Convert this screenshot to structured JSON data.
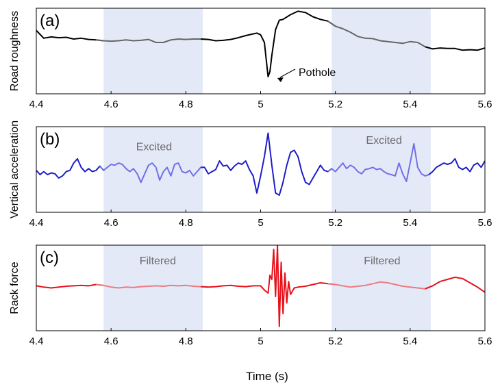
{
  "chart_data": [
    {
      "panel_label": "(a)",
      "type": "line",
      "ylabel": "Road roughness",
      "xlim": [
        4.4,
        5.6
      ],
      "ylim": [
        -1,
        1
      ],
      "ticks": [
        "4.4",
        "4.6",
        "4.8",
        "5",
        "5.2",
        "5.4",
        "5.6"
      ],
      "line_color": "#000000",
      "highlight_color": "#666666",
      "highlight_ranges": [
        [
          4.58,
          4.845
        ],
        [
          5.19,
          5.455
        ]
      ],
      "series": [
        {
          "x": [
            4.4,
            4.42,
            4.44,
            4.46,
            4.48,
            4.5,
            4.52,
            4.54,
            4.56,
            4.58,
            4.6,
            4.62,
            4.64,
            4.66,
            4.68,
            4.7,
            4.72,
            4.74,
            4.76,
            4.78,
            4.8,
            4.82,
            4.84,
            4.86,
            4.88,
            4.9,
            4.92,
            4.94,
            4.96,
            4.98,
            4.99,
            5.0,
            5.01,
            5.02,
            5.025,
            5.03,
            5.04,
            5.05,
            5.06,
            5.08,
            5.1,
            5.12,
            5.14,
            5.16,
            5.18,
            5.2,
            5.22,
            5.24,
            5.26,
            5.28,
            5.3,
            5.32,
            5.34,
            5.36,
            5.38,
            5.4,
            5.42,
            5.44,
            5.46,
            5.48,
            5.5,
            5.52,
            5.54,
            5.56,
            5.58,
            5.6
          ],
          "y": [
            0.48,
            0.3,
            0.33,
            0.31,
            0.32,
            0.28,
            0.3,
            0.27,
            0.26,
            0.24,
            0.23,
            0.24,
            0.26,
            0.24,
            0.25,
            0.27,
            0.2,
            0.2,
            0.26,
            0.28,
            0.27,
            0.28,
            0.28,
            0.27,
            0.24,
            0.25,
            0.27,
            0.31,
            0.36,
            0.4,
            0.42,
            0.38,
            0.2,
            -0.6,
            -0.48,
            -0.1,
            0.5,
            0.72,
            0.74,
            0.85,
            0.93,
            0.9,
            0.8,
            0.74,
            0.7,
            0.58,
            0.52,
            0.44,
            0.34,
            0.3,
            0.29,
            0.24,
            0.22,
            0.2,
            0.18,
            0.22,
            0.2,
            0.1,
            0.05,
            0.07,
            0.06,
            0.06,
            0.02,
            0.03,
            0.02,
            0.07
          ]
        }
      ],
      "annotations": [
        {
          "text": "Pothole",
          "x": 5.03,
          "y": -0.6
        }
      ]
    },
    {
      "panel_label": "(b)",
      "type": "line",
      "ylabel": "Vertical acceleration",
      "xlim": [
        4.4,
        5.6
      ],
      "ylim": [
        -1,
        1
      ],
      "ticks": [
        "4.4",
        "4.6",
        "4.8",
        "5",
        "5.2",
        "5.4",
        "5.6"
      ],
      "line_color": "#1c1cc8",
      "highlight_color": "#7070e6",
      "highlight_ranges": [
        [
          4.58,
          4.845
        ],
        [
          5.19,
          5.455
        ]
      ],
      "series": [
        {
          "x": [
            4.4,
            4.41,
            4.42,
            4.43,
            4.44,
            4.45,
            4.46,
            4.47,
            4.48,
            4.49,
            4.5,
            4.51,
            4.52,
            4.53,
            4.54,
            4.55,
            4.56,
            4.57,
            4.58,
            4.59,
            4.6,
            4.61,
            4.62,
            4.63,
            4.64,
            4.65,
            4.66,
            4.67,
            4.68,
            4.69,
            4.7,
            4.71,
            4.72,
            4.73,
            4.74,
            4.75,
            4.76,
            4.77,
            4.78,
            4.79,
            4.8,
            4.81,
            4.82,
            4.83,
            4.84,
            4.85,
            4.86,
            4.87,
            4.88,
            4.89,
            4.9,
            4.91,
            4.92,
            4.93,
            4.94,
            4.95,
            4.96,
            4.97,
            4.98,
            4.99,
            5.0,
            5.01,
            5.02,
            5.03,
            5.04,
            5.05,
            5.06,
            5.07,
            5.08,
            5.09,
            5.1,
            5.11,
            5.12,
            5.13,
            5.14,
            5.15,
            5.16,
            5.17,
            5.18,
            5.19,
            5.2,
            5.21,
            5.22,
            5.23,
            5.24,
            5.25,
            5.26,
            5.27,
            5.28,
            5.29,
            5.3,
            5.31,
            5.32,
            5.33,
            5.34,
            5.35,
            5.36,
            5.37,
            5.38,
            5.39,
            5.4,
            5.41,
            5.42,
            5.43,
            5.44,
            5.45,
            5.46,
            5.47,
            5.48,
            5.49,
            5.5,
            5.51,
            5.52,
            5.53,
            5.54,
            5.55,
            5.56,
            5.57,
            5.58,
            5.59,
            5.6
          ],
          "y": [
            -0.02,
            -0.12,
            -0.05,
            -0.12,
            -0.08,
            -0.1,
            -0.2,
            -0.15,
            -0.05,
            -0.02,
            0.15,
            0.25,
            0.05,
            -0.05,
            0.02,
            -0.05,
            -0.02,
            0.08,
            -0.02,
            0.05,
            0.12,
            0.1,
            0.15,
            0.12,
            0.02,
            -0.05,
            0.02,
            -0.1,
            -0.3,
            -0.1,
            0.1,
            0.15,
            0.05,
            -0.25,
            -0.05,
            0.05,
            -0.15,
            0.12,
            0.15,
            -0.05,
            -0.08,
            -0.02,
            -0.15,
            -0.05,
            0.05,
            0.05,
            -0.1,
            -0.05,
            0.0,
            0.2,
            0.08,
            0.1,
            -0.02,
            0.08,
            0.15,
            0.12,
            0.2,
            0.0,
            -0.15,
            -0.55,
            -0.15,
            0.3,
            0.85,
            0.1,
            -0.55,
            -0.6,
            -0.3,
            0.1,
            0.4,
            0.45,
            0.3,
            -0.05,
            -0.3,
            -0.35,
            -0.2,
            -0.05,
            0.1,
            -0.02,
            -0.05,
            0.02,
            -0.05,
            0.05,
            0.15,
            0.02,
            0.1,
            0.05,
            -0.05,
            -0.1,
            0.0,
            0.02,
            0.05,
            0.0,
            0.02,
            -0.05,
            -0.1,
            -0.12,
            -0.15,
            0.15,
            -0.1,
            -0.28,
            0.15,
            0.6,
            0.05,
            -0.1,
            -0.15,
            -0.12,
            -0.05,
            0.05,
            0.1,
            0.15,
            0.12,
            0.15,
            0.25,
            0.05,
            0.0,
            0.05,
            -0.05,
            0.1,
            0.15,
            0.05,
            0.2
          ]
        }
      ],
      "annotations": [
        {
          "text": "Excited",
          "x": 4.715,
          "y": 0.45
        },
        {
          "text": "Excited",
          "x": 5.33,
          "y": 0.6
        }
      ]
    },
    {
      "panel_label": "(c)",
      "type": "line",
      "ylabel": "Rack force",
      "xlim": [
        4.4,
        5.6
      ],
      "ylim": [
        -1,
        1
      ],
      "ticks": [
        "4.4",
        "4.6",
        "4.8",
        "5",
        "5.2",
        "5.4",
        "5.6"
      ],
      "line_color": "#e8101a",
      "highlight_color": "#ee7a80",
      "highlight_ranges": [
        [
          4.58,
          4.845
        ],
        [
          5.19,
          5.455
        ]
      ],
      "series": [
        {
          "x": [
            4.4,
            4.42,
            4.44,
            4.46,
            4.48,
            4.5,
            4.52,
            4.54,
            4.56,
            4.58,
            4.6,
            4.62,
            4.64,
            4.66,
            4.68,
            4.7,
            4.72,
            4.74,
            4.76,
            4.78,
            4.8,
            4.82,
            4.84,
            4.86,
            4.88,
            4.9,
            4.92,
            4.94,
            4.96,
            4.98,
            5.0,
            5.01,
            5.02,
            5.025,
            5.03,
            5.035,
            5.04,
            5.045,
            5.05,
            5.055,
            5.06,
            5.065,
            5.07,
            5.075,
            5.08,
            5.09,
            5.1,
            5.12,
            5.14,
            5.16,
            5.18,
            5.2,
            5.22,
            5.24,
            5.26,
            5.28,
            5.3,
            5.32,
            5.34,
            5.36,
            5.38,
            5.4,
            5.42,
            5.44,
            5.46,
            5.48,
            5.5,
            5.52,
            5.54,
            5.56,
            5.58,
            5.6
          ],
          "y": [
            0.05,
            0.02,
            0.0,
            0.02,
            0.04,
            0.05,
            0.06,
            0.05,
            0.08,
            0.06,
            0.02,
            0.0,
            0.02,
            0.01,
            0.03,
            0.04,
            0.05,
            0.04,
            0.06,
            0.05,
            0.06,
            0.04,
            0.03,
            0.02,
            0.03,
            0.05,
            0.06,
            0.04,
            0.03,
            0.05,
            0.05,
            -0.05,
            -0.12,
            0.3,
            0.2,
            0.9,
            -0.2,
            1.0,
            -0.9,
            0.6,
            -0.6,
            0.35,
            -0.35,
            0.15,
            -0.15,
            0.0,
            0.02,
            0.04,
            0.08,
            0.12,
            0.1,
            0.08,
            0.05,
            0.02,
            0.04,
            0.06,
            0.1,
            0.14,
            0.12,
            0.08,
            0.04,
            0.02,
            0.0,
            -0.02,
            0.05,
            0.15,
            0.2,
            0.25,
            0.22,
            0.12,
            0.02,
            -0.1
          ]
        }
      ],
      "annotations": [
        {
          "text": "Filtered",
          "x": 4.725,
          "y": 0.55
        },
        {
          "text": "Filtered",
          "x": 5.325,
          "y": 0.55
        }
      ]
    }
  ],
  "xlabel": "Time  (s)"
}
